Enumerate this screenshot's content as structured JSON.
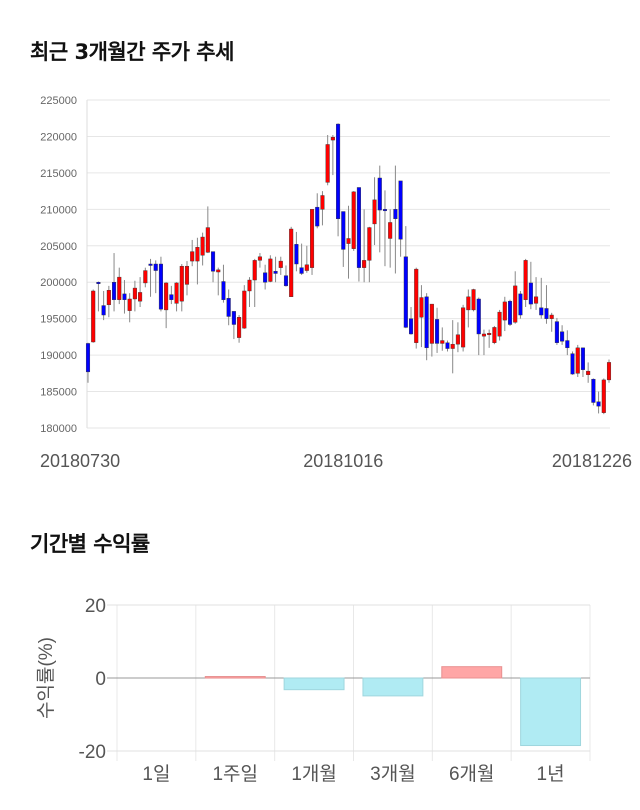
{
  "chart_data": [
    {
      "type": "candlestick",
      "title": "최근 3개월간 주가 추세",
      "ylim": [
        180000,
        225000
      ],
      "yticks": [
        "225000",
        "220000",
        "215000",
        "210000",
        "205000",
        "200000",
        "195000",
        "190000",
        "185000",
        "180000"
      ],
      "xlabels": [
        {
          "text": "20180730",
          "index": 0
        },
        {
          "text": "20181016",
          "index": 49
        },
        {
          "text": "20181226",
          "index": 100
        }
      ],
      "up_color": "#ff0000",
      "down_color": "#0000ff",
      "ohlc": [
        [
          191600,
          191700,
          186200,
          187700
        ],
        [
          191800,
          199000,
          191700,
          198800
        ],
        [
          200000,
          200100,
          196000,
          199900
        ],
        [
          196800,
          198800,
          194800,
          195500
        ],
        [
          196900,
          199500,
          195200,
          198900
        ],
        [
          200000,
          204000,
          196000,
          197600
        ],
        [
          197600,
          202000,
          197000,
          200700
        ],
        [
          198400,
          200300,
          195700,
          197600
        ],
        [
          196100,
          198500,
          194500,
          197700
        ],
        [
          197700,
          200200,
          196000,
          199200
        ],
        [
          197400,
          200700,
          196600,
          198600
        ],
        [
          199900,
          202000,
          199300,
          201600
        ],
        [
          202500,
          203200,
          198000,
          202300
        ],
        [
          202500,
          203000,
          198500,
          201600
        ],
        [
          202500,
          203500,
          196000,
          196300
        ],
        [
          196200,
          200000,
          193700,
          199900
        ],
        [
          198300,
          199500,
          197000,
          197600
        ],
        [
          197100,
          200000,
          196000,
          199900
        ],
        [
          197400,
          202500,
          196000,
          202200
        ],
        [
          199700,
          202900,
          198200,
          202200
        ],
        [
          202900,
          205800,
          202200,
          204200
        ],
        [
          202900,
          206100,
          199700,
          204800
        ],
        [
          203700,
          206800,
          202300,
          206200
        ],
        [
          204100,
          210400,
          204000,
          207500
        ],
        [
          204200,
          204200,
          200000,
          201500
        ],
        [
          201400,
          202000,
          198200,
          201700
        ],
        [
          200100,
          202400,
          197200,
          197600
        ],
        [
          197800,
          199000,
          194100,
          195300
        ],
        [
          196000,
          196000,
          192200,
          194200
        ],
        [
          192400,
          195500,
          191700,
          195200
        ],
        [
          193700,
          199600,
          193600,
          198800
        ],
        [
          198800,
          200700,
          196600,
          200300
        ],
        [
          200300,
          203200,
          196600,
          203000
        ],
        [
          203000,
          204000,
          202000,
          203500
        ],
        [
          201300,
          202400,
          199000,
          200000
        ],
        [
          200100,
          203700,
          200000,
          203200
        ],
        [
          201500,
          203500,
          200000,
          201200
        ],
        [
          202000,
          203500,
          201000,
          202900
        ],
        [
          200900,
          202300,
          199400,
          199500
        ],
        [
          198000,
          207600,
          198000,
          207300
        ],
        [
          205200,
          206900,
          201500,
          202500
        ],
        [
          202000,
          205300,
          201000,
          201200
        ],
        [
          201600,
          205000,
          201300,
          202400
        ],
        [
          202000,
          210000,
          201000,
          210000
        ],
        [
          210300,
          212200,
          207400,
          207700
        ],
        [
          210000,
          212500,
          207800,
          211900
        ],
        [
          213700,
          220200,
          213300,
          218900
        ],
        [
          219500,
          220200,
          214700,
          219900
        ],
        [
          221700,
          221800,
          206300,
          208700
        ],
        [
          209700,
          209700,
          202100,
          204500
        ],
        [
          205300,
          210500,
          200500,
          206000
        ],
        [
          204600,
          212500,
          204300,
          212400
        ],
        [
          213000,
          213000,
          200100,
          202000
        ],
        [
          202000,
          210000,
          200000,
          203000
        ],
        [
          203000,
          207600,
          200000,
          207500
        ],
        [
          208000,
          214400,
          205100,
          211300
        ],
        [
          214300,
          216000,
          204100,
          209900
        ],
        [
          210000,
          212600,
          202200,
          209900
        ],
        [
          206000,
          210000,
          202000,
          208200
        ],
        [
          210000,
          216000,
          201200,
          208700
        ],
        [
          213900,
          213900,
          203500,
          205900
        ],
        [
          203500,
          207700,
          193700,
          193800
        ],
        [
          195000,
          196600,
          192800,
          192900
        ],
        [
          191700,
          202000,
          190900,
          201800
        ],
        [
          195200,
          199600,
          191100,
          197900
        ],
        [
          198000,
          198500,
          189300,
          191000
        ],
        [
          191600,
          197000,
          189800,
          197000
        ],
        [
          194900,
          196500,
          190300,
          191600
        ],
        [
          191600,
          193800,
          190600,
          192000
        ],
        [
          191700,
          192000,
          190500,
          190900
        ],
        [
          190900,
          194800,
          187500,
          191500
        ],
        [
          191500,
          194500,
          190400,
          192800
        ],
        [
          191100,
          196900,
          190500,
          196500
        ],
        [
          196200,
          199000,
          193800,
          198000
        ],
        [
          196200,
          199100,
          196000,
          199000
        ],
        [
          197700,
          197900,
          190000,
          192900
        ],
        [
          192600,
          193500,
          190000,
          192900
        ],
        [
          192800,
          193500,
          191000,
          193000
        ],
        [
          191700,
          194000,
          191500,
          193800
        ],
        [
          192600,
          196200,
          192000,
          195900
        ],
        [
          194800,
          198000,
          193300,
          197300
        ],
        [
          197400,
          197600,
          194000,
          194200
        ],
        [
          194500,
          201500,
          194300,
          199500
        ],
        [
          198400,
          198800,
          195000,
          195500
        ],
        [
          197600,
          203200,
          196600,
          203000
        ],
        [
          199900,
          202800,
          196300,
          197000
        ],
        [
          197100,
          200700,
          196200,
          198000
        ],
        [
          196500,
          200600,
          195000,
          195500
        ],
        [
          196400,
          199600,
          194300,
          195000
        ],
        [
          195000,
          195800,
          193200,
          195500
        ],
        [
          194600,
          195100,
          191400,
          191700
        ],
        [
          193200,
          194100,
          191400,
          191900
        ],
        [
          192000,
          193400,
          190000,
          191000
        ],
        [
          190200,
          190500,
          187300,
          187400
        ],
        [
          187500,
          191400,
          187000,
          191000
        ],
        [
          191000,
          191000,
          187000,
          188000
        ],
        [
          187300,
          189000,
          186200,
          187800
        ],
        [
          186700,
          186800,
          183100,
          183500
        ],
        [
          183600,
          185000,
          182000,
          183000
        ],
        [
          182100,
          186800,
          181900,
          186600
        ],
        [
          186600,
          189400,
          186200,
          189000
        ]
      ]
    },
    {
      "type": "bar",
      "title": "기간별 수익률",
      "ylabel": "수익률(%)",
      "ylim": [
        -20,
        20
      ],
      "yticks": [
        "20",
        "0",
        "-20"
      ],
      "categories": [
        "1일",
        "1주일",
        "1개월",
        "3개월",
        "6개월",
        "1년"
      ],
      "values": [
        0,
        0.4,
        -3.2,
        -4.9,
        3.1,
        -18.5
      ],
      "pos_color": "#ffa6a6",
      "neg_color": "#b0ebf3"
    }
  ]
}
